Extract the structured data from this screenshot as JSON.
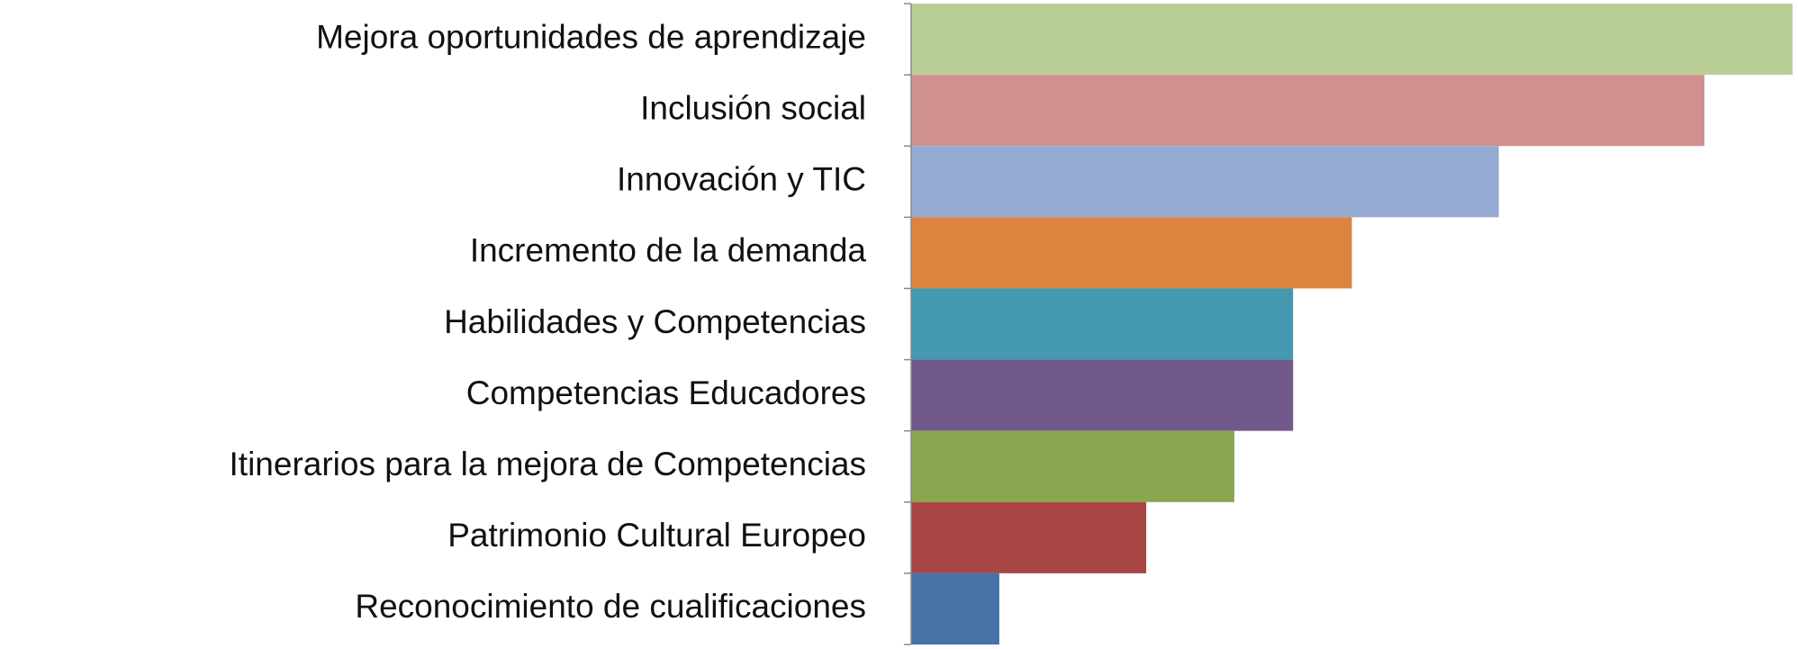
{
  "chart_data": {
    "type": "barh",
    "categories": [
      "Mejora oportunidades de aprendizaje",
      "Inclusión social",
      "Innovación y TIC",
      "Incremento de la demanda",
      "Habilidades y Competencias",
      "Competencias Educadores",
      "Itinerarios para la mejora de Competencias",
      "Patrimonio Cultural Europeo",
      "Reconocimiento de cualificaciones"
    ],
    "values": [
      30,
      27,
      20,
      15,
      13,
      13,
      11,
      8,
      3
    ],
    "colors": [
      "#bacf98",
      "#d19090",
      "#95aad0",
      "#dc8340",
      "#4499b0",
      "#71598c",
      "#88a74f",
      "#a84646",
      "#4673a8"
    ]
  }
}
